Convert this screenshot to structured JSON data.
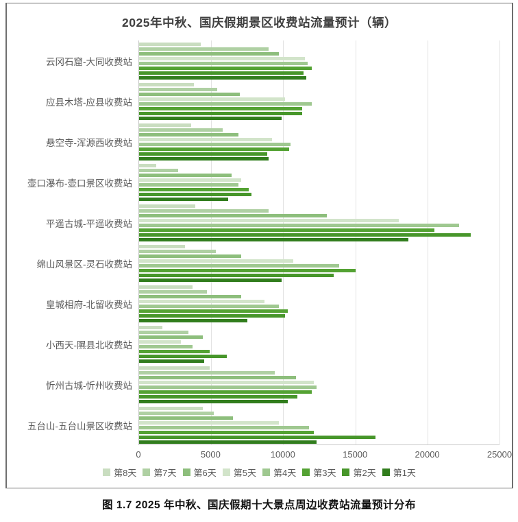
{
  "figure": {
    "title": "2025年中秋、国庆假期景区收费站流量预计（辆）",
    "caption": "图 1.7 2025 年中秋、国庆假期十大景点周边收费站流量预计分布"
  },
  "chart_data": {
    "type": "bar",
    "orientation": "horizontal",
    "title": "2025年中秋、国庆假期景区收费站流量预计（辆）",
    "xlabel": "",
    "ylabel": "",
    "xlim": [
      0,
      25000
    ],
    "x_ticks": [
      0,
      5000,
      10000,
      15000,
      20000,
      25000
    ],
    "grid": true,
    "legend_position": "bottom",
    "categories": [
      "云冈石窟-大同收费站",
      "应县木塔-应县收费站",
      "悬空寺-浑源西收费站",
      "壶口瀑布-壶口景区收费站",
      "平遥古城-平遥收费站",
      "绵山风景区-灵石收费站",
      "皇城相府-北留收费站",
      "小西天-隰县北收费站",
      "忻州古城-忻州收费站",
      "五台山-五台山景区收费站"
    ],
    "series": [
      {
        "name": "第8天",
        "color": "#c9ddc0",
        "values": [
          4300,
          3800,
          3600,
          1200,
          3900,
          3200,
          3700,
          1600,
          4900,
          4400
        ]
      },
      {
        "name": "第7天",
        "color": "#afd0a3",
        "values": [
          9000,
          5400,
          5800,
          2700,
          9000,
          5300,
          4700,
          3400,
          9400,
          5200
        ]
      },
      {
        "name": "第6天",
        "color": "#8dbe7c",
        "values": [
          9700,
          7000,
          6900,
          6400,
          13000,
          7100,
          7100,
          4400,
          10900,
          6500
        ]
      },
      {
        "name": "第5天",
        "color": "#d2e4ca",
        "values": [
          11500,
          10100,
          9200,
          7100,
          18000,
          10700,
          8700,
          2900,
          12100,
          9700
        ]
      },
      {
        "name": "第4天",
        "color": "#9fc890",
        "values": [
          11700,
          12000,
          10500,
          6900,
          22200,
          13900,
          9700,
          3700,
          12300,
          11800
        ]
      },
      {
        "name": "第3天",
        "color": "#54a233",
        "values": [
          12000,
          11300,
          10400,
          7600,
          20500,
          15000,
          10300,
          4900,
          12000,
          12100
        ]
      },
      {
        "name": "第2天",
        "color": "#47962a",
        "values": [
          11400,
          11300,
          8900,
          7800,
          23000,
          13500,
          10100,
          6100,
          11000,
          16400
        ]
      },
      {
        "name": "第1天",
        "color": "#317d1d",
        "values": [
          11600,
          9900,
          9000,
          6200,
          18700,
          9900,
          7500,
          4500,
          10300,
          12300
        ]
      }
    ]
  }
}
